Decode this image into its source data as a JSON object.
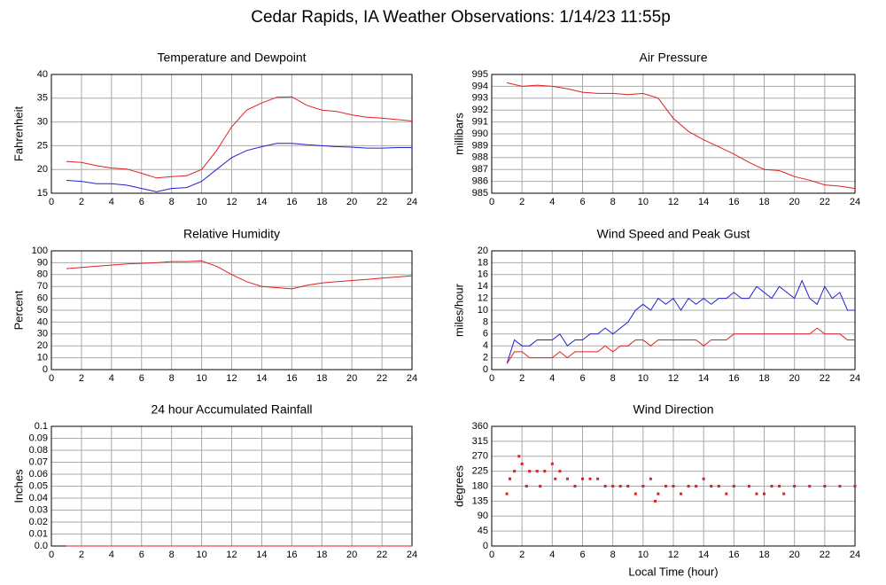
{
  "title": "Cedar Rapids, IA Weather Observations: 1/14/23 11:55p",
  "chart_data": [
    {
      "type": "line",
      "title": "Temperature and Dewpoint",
      "y_label": "Fahrenheit",
      "x": [
        1,
        2,
        3,
        4,
        5,
        6,
        7,
        8,
        9,
        10,
        11,
        12,
        13,
        14,
        15,
        16,
        17,
        18,
        19,
        20,
        21,
        22,
        23,
        24
      ],
      "series": [
        {
          "color": "#e02020",
          "values": [
            21.7,
            21.5,
            20.8,
            20.3,
            20.1,
            19.2,
            18.2,
            18.5,
            18.7,
            20,
            24,
            29,
            32.5,
            34,
            35.2,
            35.3,
            33.5,
            32.5,
            32.2,
            31.5,
            31,
            30.8,
            30.5,
            30.2
          ]
        },
        {
          "color": "#2020d0",
          "values": [
            17.7,
            17.5,
            17,
            17,
            16.7,
            16,
            15.3,
            16,
            16.2,
            17.5,
            20,
            22.5,
            24,
            24.8,
            25.5,
            25.5,
            25.2,
            25,
            24.8,
            24.7,
            24.5,
            24.5,
            24.6,
            24.6
          ]
        }
      ],
      "xlim": [
        0,
        24
      ],
      "xticks": [
        0,
        2,
        4,
        6,
        8,
        10,
        12,
        14,
        16,
        18,
        20,
        22,
        24
      ],
      "ylim": [
        15,
        40
      ],
      "yticks": [
        15,
        20,
        25,
        30,
        35,
        40
      ],
      "grid": true
    },
    {
      "type": "line",
      "title": "Air Pressure",
      "y_label": "millibars",
      "x": [
        1,
        2,
        3,
        4,
        5,
        6,
        7,
        8,
        9,
        10,
        11,
        12,
        13,
        14,
        15,
        16,
        17,
        18,
        19,
        20,
        21,
        22,
        23,
        24
      ],
      "series": [
        {
          "color": "#e02020",
          "values": [
            994.3,
            994,
            994.1,
            994,
            993.8,
            993.5,
            993.4,
            993.4,
            993.3,
            993.4,
            993,
            991.3,
            990.2,
            989.5,
            988.9,
            988.3,
            987.6,
            987,
            986.9,
            986.4,
            986.1,
            985.7,
            985.6,
            985.4
          ]
        }
      ],
      "xlim": [
        0,
        24
      ],
      "xticks": [
        0,
        2,
        4,
        6,
        8,
        10,
        12,
        14,
        16,
        18,
        20,
        22,
        24
      ],
      "ylim": [
        985,
        995
      ],
      "yticks": [
        985,
        986,
        987,
        988,
        989,
        990,
        991,
        992,
        993,
        994,
        995
      ],
      "grid": true
    },
    {
      "type": "line",
      "title": "Relative Humidity",
      "y_label": "Percent",
      "x": [
        1,
        2,
        3,
        4,
        5,
        6,
        7,
        8,
        9,
        10,
        11,
        12,
        13,
        14,
        15,
        16,
        17,
        18,
        19,
        20,
        21,
        22,
        23,
        24
      ],
      "series": [
        {
          "color": "#e02020",
          "values": [
            85,
            86,
            87,
            88,
            89,
            89.5,
            90,
            91,
            91,
            91.5,
            87,
            80,
            74,
            70,
            69,
            68,
            71,
            73,
            74,
            75,
            76,
            77,
            78,
            79
          ]
        }
      ],
      "xlim": [
        0,
        24
      ],
      "xticks": [
        0,
        2,
        4,
        6,
        8,
        10,
        12,
        14,
        16,
        18,
        20,
        22,
        24
      ],
      "ylim": [
        0,
        100
      ],
      "yticks": [
        0,
        10,
        20,
        30,
        40,
        50,
        60,
        70,
        80,
        90,
        100
      ],
      "grid": true
    },
    {
      "type": "line",
      "title": "Wind Speed and Peak Gust",
      "y_label": "miles/hour",
      "x": [
        1,
        1.5,
        2,
        2.5,
        3,
        3.5,
        4,
        4.5,
        5,
        5.5,
        6,
        6.5,
        7,
        7.5,
        8,
        8.5,
        9,
        9.5,
        10,
        10.5,
        11,
        11.5,
        12,
        12.5,
        13,
        13.5,
        14,
        14.5,
        15,
        15.5,
        16,
        16.5,
        17,
        17.5,
        18,
        18.5,
        19,
        19.5,
        20,
        20.5,
        21,
        21.5,
        22,
        22.5,
        23,
        23.5,
        24
      ],
      "series": [
        {
          "color": "#2020d0",
          "values": [
            1,
            5,
            4,
            4,
            5,
            5,
            5,
            6,
            4,
            5,
            5,
            6,
            6,
            7,
            6,
            7,
            8,
            10,
            11,
            10,
            12,
            11,
            12,
            10,
            12,
            11,
            12,
            11,
            12,
            12,
            13,
            12,
            12,
            14,
            13,
            12,
            14,
            13,
            12,
            15,
            12,
            11,
            14,
            12,
            13,
            10,
            10
          ]
        },
        {
          "color": "#e02020",
          "values": [
            1,
            3,
            3,
            2,
            2,
            2,
            2,
            3,
            2,
            3,
            3,
            3,
            3,
            4,
            3,
            4,
            4,
            5,
            5,
            4,
            5,
            5,
            5,
            5,
            5,
            5,
            4,
            5,
            5,
            5,
            6,
            6,
            6,
            6,
            6,
            6,
            6,
            6,
            6,
            6,
            6,
            7,
            6,
            6,
            6,
            5,
            5
          ]
        }
      ],
      "xlim": [
        0,
        24
      ],
      "xticks": [
        0,
        2,
        4,
        6,
        8,
        10,
        12,
        14,
        16,
        18,
        20,
        22,
        24
      ],
      "ylim": [
        0,
        20
      ],
      "yticks": [
        0,
        2,
        4,
        6,
        8,
        10,
        12,
        14,
        16,
        18,
        20
      ],
      "grid": true
    },
    {
      "type": "line",
      "title": "24 hour Accumulated Rainfall",
      "y_label": "Inches",
      "x": [
        1,
        24
      ],
      "series": [
        {
          "color": "#e02020",
          "values": [
            0,
            0
          ]
        }
      ],
      "xlim": [
        0,
        24
      ],
      "xticks": [
        0,
        2,
        4,
        6,
        8,
        10,
        12,
        14,
        16,
        18,
        20,
        22,
        24
      ],
      "ylim": [
        0,
        0.1
      ],
      "yticks": [
        {
          "value": 0,
          "label": "0.0"
        },
        0.01,
        0.02,
        0.03,
        0.04,
        0.05,
        0.06,
        0.07,
        0.08,
        0.09,
        0.1
      ],
      "grid": true
    },
    {
      "type": "scatter",
      "title": "Wind Direction",
      "y_label": "degrees",
      "x_label": "Local Time (hour)",
      "x": [
        1,
        1.2,
        1.5,
        1.8,
        2,
        2.3,
        2.5,
        3,
        3.2,
        3.5,
        4,
        4.2,
        4.5,
        5,
        5.5,
        6,
        6.5,
        7,
        7.5,
        8,
        8.5,
        9,
        9.5,
        10,
        10.5,
        10.8,
        11,
        11.5,
        12,
        12.5,
        13,
        13.5,
        14,
        14.5,
        15,
        15.5,
        16,
        17,
        17.5,
        18,
        18.5,
        19,
        19.3,
        20,
        21,
        22,
        23,
        24
      ],
      "values": [
        157,
        202,
        225,
        270,
        247,
        180,
        225,
        225,
        180,
        225,
        247,
        202,
        225,
        202,
        180,
        202,
        202,
        202,
        180,
        180,
        180,
        180,
        157,
        180,
        202,
        135,
        157,
        180,
        180,
        157,
        180,
        180,
        202,
        180,
        180,
        157,
        180,
        180,
        157,
        157,
        180,
        180,
        157,
        180,
        180,
        180,
        180,
        180
      ],
      "color": "#e02020",
      "xlim": [
        0,
        24
      ],
      "xticks": [
        0,
        2,
        4,
        6,
        8,
        10,
        12,
        14,
        16,
        18,
        20,
        22,
        24
      ],
      "ylim": [
        0,
        360
      ],
      "yticks": [
        0,
        45,
        90,
        135,
        180,
        225,
        270,
        315,
        360
      ],
      "grid": true
    }
  ]
}
